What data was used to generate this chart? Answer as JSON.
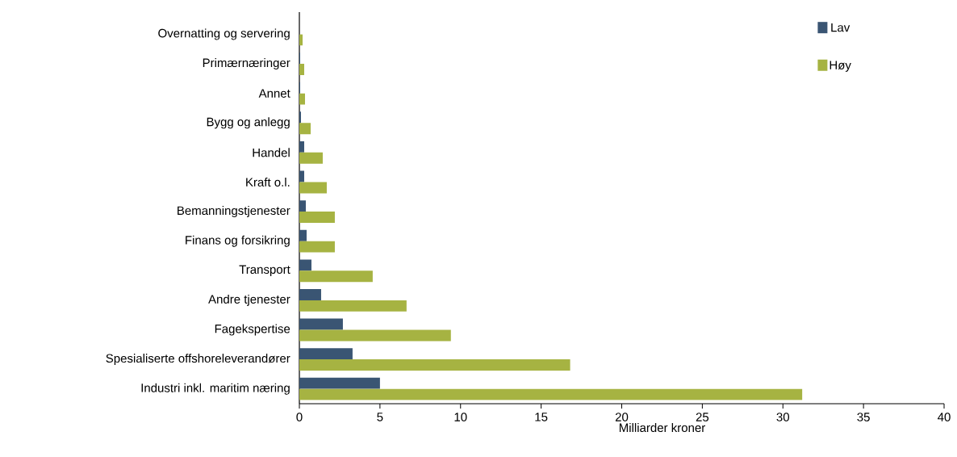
{
  "chart_data": {
    "type": "bar",
    "orientation": "horizontal",
    "categories": [
      "Overnatting og servering",
      "Primærnæringer",
      "Annet",
      "Bygg og anlegg",
      "Handel",
      "Kraft o.l.",
      "Bemanningstjenester",
      "Finans og forsikring",
      "Transport",
      "Andre tjenester",
      "Fagekspertise",
      "Spesialiserte offshoreleverandører",
      "Industri inkl. maritim næring"
    ],
    "series": [
      {
        "name": "Lav",
        "color": "#3a5573",
        "values": [
          null,
          0.05,
          0.05,
          0.1,
          0.3,
          0.3,
          0.4,
          0.45,
          0.75,
          1.35,
          2.7,
          3.3,
          5.0
        ]
      },
      {
        "name": "Høy",
        "color": "#a6b342",
        "values": [
          0.2,
          0.3,
          0.35,
          0.7,
          1.45,
          1.7,
          2.2,
          2.2,
          4.55,
          6.65,
          9.4,
          16.8,
          31.2
        ]
      }
    ],
    "xlim": [
      0,
      40
    ],
    "xticks": [
      0,
      5,
      10,
      15,
      20,
      25,
      30,
      35,
      40
    ],
    "xlabel": "Milliarder kroner",
    "legend": "top right",
    "grid": false
  }
}
